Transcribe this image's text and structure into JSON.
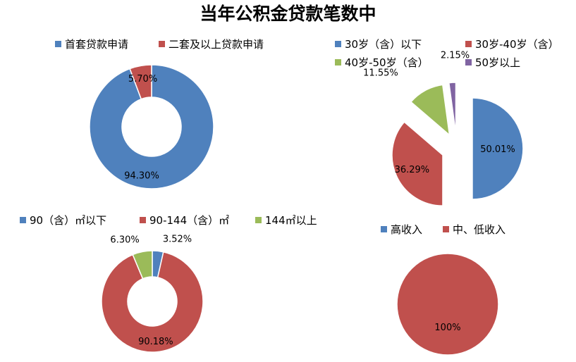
{
  "title": "当年公积金贷款笔数中",
  "colors": {
    "blue": "#4f81bd",
    "red": "#c0504d",
    "green": "#9bbb59",
    "purple": "#8064a2"
  },
  "chart_data": [
    {
      "type": "pie",
      "variant": "doughnut",
      "categories": [
        "首套贷款申请",
        "二套及以上贷款申请"
      ],
      "values": [
        94.3,
        5.7
      ],
      "data_labels": [
        "94.30%",
        "5.70%"
      ],
      "colors": [
        "#4f81bd",
        "#c0504d"
      ],
      "legend_position": "top"
    },
    {
      "type": "pie",
      "variant": "exploded",
      "categories": [
        "30岁（含）以下",
        "30岁-40岁（含）",
        "40岁-50岁（含）",
        "50岁以上"
      ],
      "values": [
        50.01,
        36.29,
        11.55,
        2.15
      ],
      "data_labels": [
        "50.01%",
        "36.29%",
        "11.55%",
        "2.15%"
      ],
      "colors": [
        "#4f81bd",
        "#c0504d",
        "#9bbb59",
        "#8064a2"
      ],
      "legend_position": "top"
    },
    {
      "type": "pie",
      "variant": "doughnut",
      "categories": [
        "90（含）㎡以下",
        "90-144（含）㎡",
        "144㎡以上"
      ],
      "values": [
        3.52,
        90.18,
        6.3
      ],
      "data_labels": [
        "3.52%",
        "90.18%",
        "6.30%"
      ],
      "colors": [
        "#4f81bd",
        "#c0504d",
        "#9bbb59"
      ],
      "legend_position": "top"
    },
    {
      "type": "pie",
      "categories": [
        "高收入",
        "中、低收入"
      ],
      "values": [
        0,
        100
      ],
      "data_labels": [
        "",
        "100%"
      ],
      "colors": [
        "#4f81bd",
        "#c0504d"
      ],
      "legend_position": "top"
    }
  ]
}
